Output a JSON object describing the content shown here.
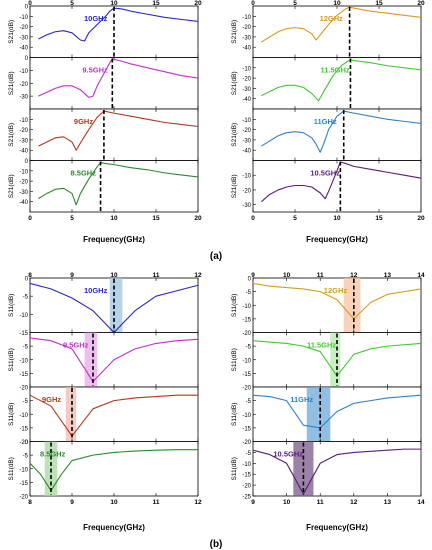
{
  "caption_a": "(a)",
  "caption_b": "(b)",
  "chart_data": [
    {
      "type": "line",
      "group": "a",
      "xlabel": "Frequency(GHz)",
      "xlim": [
        0,
        20
      ],
      "xticks": [
        0,
        5,
        10,
        15,
        20
      ],
      "xtick_labels": [
        "0",
        "5",
        "10",
        "15",
        "20"
      ],
      "panels": [
        {
          "label": "10GHz",
          "ylabel": "S21(dB)",
          "ylim": [
            -50,
            0
          ],
          "yticks": [
            -40,
            -30,
            -20,
            -10,
            0
          ],
          "color": "#2727c0",
          "marker_x": 10.0,
          "x": [
            1,
            2,
            3,
            4,
            5,
            6,
            6.5,
            7,
            8,
            9,
            9.5,
            10,
            11,
            12,
            14,
            16,
            18,
            20
          ],
          "y": [
            -32,
            -28,
            -25,
            -24,
            -26,
            -33,
            -34,
            -26,
            -18,
            -10,
            -5,
            -2,
            -3,
            -5,
            -8,
            -11,
            -13,
            -15
          ]
        },
        {
          "label": "9.5GHz",
          "ylabel": "S21(dB)",
          "ylim": [
            -40,
            0
          ],
          "yticks": [
            -30,
            -20,
            -10,
            0
          ],
          "color": "#c030c8",
          "marker_x": 9.8,
          "x": [
            1,
            2,
            3,
            4,
            5,
            6,
            7,
            7.5,
            8,
            9,
            9.5,
            9.8,
            11,
            12,
            14,
            16,
            18,
            20
          ],
          "y": [
            -30,
            -27,
            -24,
            -22,
            -22,
            -25,
            -31,
            -30,
            -22,
            -10,
            -4,
            -1,
            -3,
            -5,
            -8,
            -11,
            -14,
            -16
          ]
        },
        {
          "label": "9GHz",
          "ylabel": "S21(dB)",
          "ylim": [
            -50,
            0
          ],
          "yticks": [
            -40,
            -30,
            -20,
            -10
          ],
          "color": "#b03820",
          "marker_x": 8.8,
          "x": [
            1,
            2,
            3,
            4,
            5,
            5.5,
            6,
            7,
            8,
            8.8,
            10,
            12,
            14,
            16,
            18,
            20
          ],
          "y": [
            -36,
            -32,
            -28,
            -27,
            -32,
            -40,
            -33,
            -20,
            -8,
            -2,
            -4,
            -7,
            -10,
            -13,
            -15,
            -17
          ]
        },
        {
          "label": "8.5GHz",
          "ylabel": "S21(dB)",
          "ylim": [
            -50,
            0
          ],
          "yticks": [
            -40,
            -30,
            -20,
            -10,
            0
          ],
          "color": "#2a8a2a",
          "marker_x": 8.4,
          "x": [
            1,
            2,
            3,
            4,
            5,
            5.5,
            6,
            7,
            8,
            8.4,
            9,
            10,
            12,
            14,
            16,
            18,
            20
          ],
          "y": [
            -37,
            -32,
            -28,
            -27,
            -32,
            -43,
            -32,
            -18,
            -6,
            -2,
            -3,
            -4,
            -7,
            -9,
            -12,
            -14,
            -16
          ]
        }
      ]
    },
    {
      "type": "line",
      "group": "a",
      "xlabel": "Frequency(GHz)",
      "xlim": [
        0,
        20
      ],
      "xticks": [
        0,
        5,
        10,
        15,
        20
      ],
      "xtick_labels": [
        "0",
        "5",
        "10",
        "15",
        "20"
      ],
      "panels": [
        {
          "label": "12GHz",
          "ylabel": "S21(dB)",
          "ylim": [
            -50,
            0
          ],
          "yticks": [
            -40,
            -30,
            -20,
            -10
          ],
          "color": "#d89a20",
          "marker_x": 11.5,
          "x": [
            1,
            2,
            3,
            4,
            5,
            6,
            7,
            7.5,
            8,
            9,
            10,
            11,
            11.5,
            12,
            14,
            16,
            18,
            20
          ],
          "y": [
            -35,
            -30,
            -25,
            -22,
            -21,
            -22,
            -27,
            -33,
            -28,
            -18,
            -9,
            -3,
            -1,
            -2,
            -5,
            -7,
            -9,
            -11
          ]
        },
        {
          "label": "11.5GHz",
          "ylabel": "S21(dB)",
          "ylim": [
            -50,
            0
          ],
          "yticks": [
            -40,
            -30,
            -20,
            -10
          ],
          "color": "#40c830",
          "marker_x": 11.6,
          "x": [
            1,
            2,
            3,
            4,
            5,
            6,
            7,
            7.8,
            8.5,
            9.5,
            10.5,
            11.6,
            12,
            14,
            16,
            18,
            20
          ],
          "y": [
            -37,
            -33,
            -29,
            -27,
            -27,
            -29,
            -35,
            -42,
            -32,
            -18,
            -8,
            -2,
            -3,
            -5,
            -8,
            -10,
            -12
          ]
        },
        {
          "label": "11GHz",
          "ylabel": "S21(dB)",
          "ylim": [
            -50,
            0
          ],
          "yticks": [
            -40,
            -30,
            -20,
            -10
          ],
          "color": "#3080c8",
          "marker_x": 10.8,
          "x": [
            1,
            2,
            3,
            4,
            5,
            6,
            7,
            7.5,
            8,
            8.5,
            9,
            10,
            10.8,
            12,
            14,
            16,
            18,
            20
          ],
          "y": [
            -36,
            -31,
            -26,
            -23,
            -22,
            -23,
            -28,
            -34,
            -42,
            -32,
            -20,
            -7,
            -2,
            -4,
            -7,
            -10,
            -12,
            -14
          ]
        },
        {
          "label": "10.5GHz",
          "ylabel": "S21(dB)",
          "ylim": [
            -35,
            0
          ],
          "yticks": [
            -30,
            -20,
            -10
          ],
          "color": "#5a1a78",
          "marker_x": 10.4,
          "x": [
            1,
            2,
            3,
            4,
            5,
            6,
            7,
            8,
            8.6,
            9,
            10,
            10.4,
            11,
            12,
            14,
            16,
            18,
            20
          ],
          "y": [
            -28,
            -23,
            -20,
            -18,
            -17,
            -17,
            -18,
            -22,
            -26,
            -21,
            -7,
            -1,
            -2,
            -4,
            -6,
            -8,
            -10,
            -12
          ]
        }
      ]
    },
    {
      "type": "line",
      "group": "b",
      "xlabel": "Frequency(GHz)",
      "xlim": [
        8,
        12
      ],
      "xticks": [
        8,
        9,
        10,
        11,
        12
      ],
      "xtick_labels": [
        "8",
        "9",
        "10",
        "11",
        "12"
      ],
      "panels": [
        {
          "label": "10GHz",
          "ylabel": "S11(dB)",
          "ylim": [
            -15,
            0
          ],
          "yticks": [
            -15,
            -10,
            -5,
            0
          ],
          "color": "#2727c0",
          "band": [
            9.9,
            10.2
          ],
          "band_color": "#9ec4e0",
          "marker_x": 10.0,
          "x": [
            8,
            8.5,
            9,
            9.5,
            10,
            10.5,
            11,
            11.5,
            12
          ],
          "y": [
            -1.5,
            -3,
            -5.5,
            -9,
            -15,
            -9,
            -5,
            -3.5,
            -2
          ]
        },
        {
          "label": "9.5GHz",
          "ylabel": "S11(dB)",
          "ylim": [
            -20,
            0
          ],
          "yticks": [
            -20,
            -15,
            -10,
            -5
          ],
          "color": "#c030c8",
          "band": [
            9.3,
            9.6
          ],
          "band_color": "#e8a8e8",
          "marker_x": 9.5,
          "x": [
            8,
            8.5,
            9,
            9.5,
            10,
            10.5,
            11,
            11.5,
            12
          ],
          "y": [
            -2,
            -3,
            -6,
            -18,
            -10,
            -6,
            -4,
            -3,
            -2.5
          ]
        },
        {
          "label": "9GHz",
          "ylabel": "S11(dB)",
          "ylim": [
            -20,
            0
          ],
          "yticks": [
            -20,
            -15,
            -10,
            -5
          ],
          "color": "#b03820",
          "band": [
            8.85,
            9.1
          ],
          "band_color": "#f0b8b0",
          "marker_x": 9.0,
          "x": [
            8,
            8.5,
            9,
            9.5,
            10,
            10.5,
            11,
            11.5,
            12
          ],
          "y": [
            -3,
            -7,
            -18,
            -8,
            -5,
            -4,
            -3.5,
            -3,
            -3
          ]
        },
        {
          "label": "8.5GHz",
          "ylabel": "S11(dB)",
          "ylim": [
            -20,
            0
          ],
          "yticks": [
            -20,
            -15,
            -10,
            -5,
            0
          ],
          "color": "#2a8a2a",
          "band": [
            8.35,
            8.65
          ],
          "band_color": "#a8d8a0",
          "marker_x": 8.5,
          "x": [
            8,
            8.25,
            8.5,
            8.75,
            9,
            9.5,
            10,
            10.5,
            11,
            11.5,
            12
          ],
          "y": [
            -8,
            -12,
            -18,
            -12,
            -7,
            -5,
            -4,
            -3.5,
            -3.2,
            -3,
            -3
          ]
        }
      ]
    },
    {
      "type": "line",
      "group": "b",
      "xlabel": "Frequency(GHz)",
      "xlim": [
        9,
        14
      ],
      "xticks": [
        9,
        10,
        11,
        12,
        13,
        14
      ],
      "xtick_labels": [
        "9",
        "10",
        "11",
        "12",
        "13",
        "14"
      ],
      "panels": [
        {
          "label": "12GHz",
          "ylabel": "S11(dB)",
          "ylim": [
            -20,
            0
          ],
          "yticks": [
            -20,
            -15,
            -10,
            -5,
            0
          ],
          "color": "#d89a20",
          "band": [
            11.7,
            12.2
          ],
          "band_color": "#f4c4a8",
          "marker_x": 12.0,
          "x": [
            9,
            9.5,
            10,
            10.5,
            11,
            11.5,
            12,
            12.5,
            13,
            13.5,
            14
          ],
          "y": [
            -2,
            -3,
            -3.5,
            -4,
            -5,
            -8,
            -15,
            -9,
            -6,
            -5,
            -4
          ]
        },
        {
          "label": "11.5GHz",
          "ylabel": "S11(dB)",
          "ylim": [
            -20,
            0
          ],
          "yticks": [
            -20,
            -15,
            -10,
            -5
          ],
          "color": "#40c830",
          "band": [
            11.3,
            11.6
          ],
          "band_color": "#b8e8b0",
          "marker_x": 11.5,
          "x": [
            9,
            9.5,
            10,
            10.5,
            11,
            11.5,
            12,
            12.5,
            13,
            13.5,
            14
          ],
          "y": [
            -3,
            -3.5,
            -4,
            -5,
            -7,
            -16,
            -8,
            -6,
            -5,
            -4.5,
            -4
          ]
        },
        {
          "label": "11GHz",
          "ylabel": "S11(dB)",
          "ylim": [
            -20,
            0
          ],
          "yticks": [
            -20,
            -15,
            -10,
            -5
          ],
          "color": "#3080c8",
          "band": [
            10.6,
            11.3
          ],
          "band_color": "#6ea8d8",
          "marker_x": 11.0,
          "x": [
            9,
            9.5,
            10,
            10.5,
            11,
            11.5,
            12,
            12.5,
            13,
            13.5,
            14
          ],
          "y": [
            -3,
            -3.5,
            -5,
            -14,
            -15,
            -9,
            -6,
            -5,
            -4,
            -3.5,
            -3
          ]
        },
        {
          "label": "10.5GHz",
          "ylabel": "S11(dB)",
          "ylim": [
            -25,
            0
          ],
          "yticks": [
            -25,
            -20,
            -15,
            -10,
            -5
          ],
          "color": "#5a1a78",
          "band": [
            10.2,
            10.8
          ],
          "band_color": "#7a5a8a",
          "marker_x": 10.5,
          "x": [
            9,
            9.5,
            10,
            10.5,
            11,
            11.5,
            12,
            12.5,
            13,
            13.5,
            14
          ],
          "y": [
            -4,
            -6,
            -10,
            -24,
            -10,
            -6,
            -5,
            -4.5,
            -4,
            -3.5,
            -3.5
          ]
        }
      ]
    }
  ]
}
